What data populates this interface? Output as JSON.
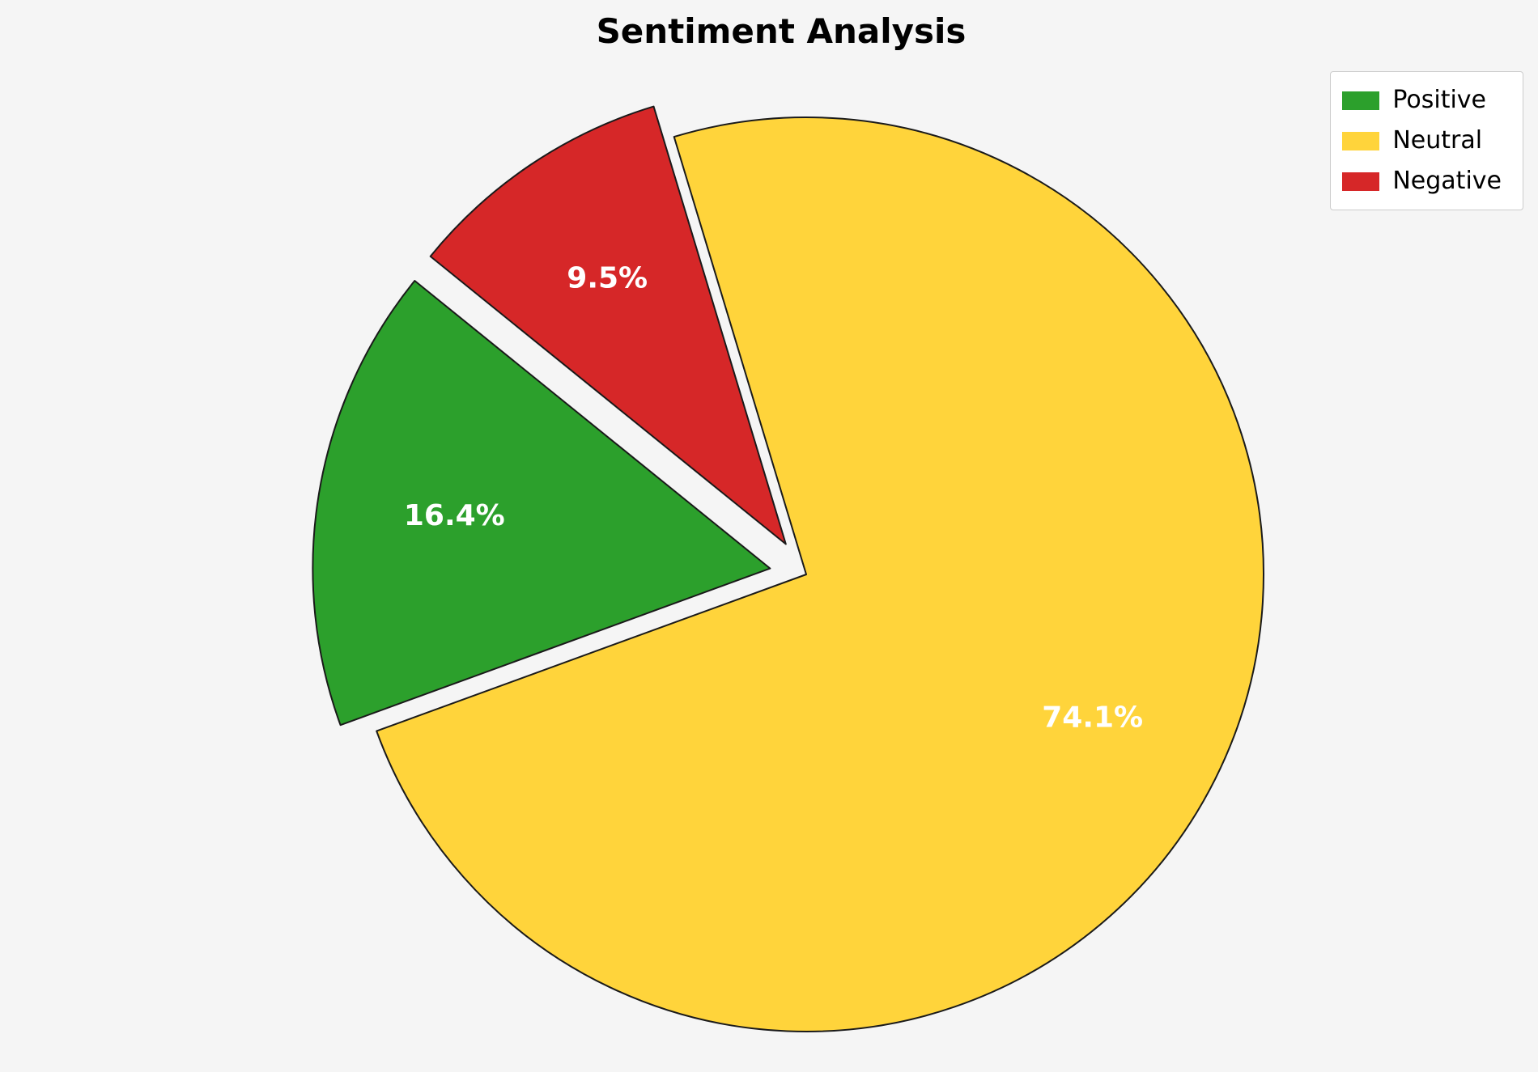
{
  "page": {
    "background": "#f5f5f5"
  },
  "chart_data": {
    "type": "pie",
    "title": "Sentiment Analysis",
    "labels": [
      "Positive",
      "Neutral",
      "Negative"
    ],
    "values": [
      16.4,
      74.1,
      9.5
    ],
    "pct_labels": [
      "16.4%",
      "74.1%",
      "9.5%"
    ],
    "colors": [
      "#2ca02c",
      "#ffd43b",
      "#d62728"
    ],
    "edge_color": "#1a1a1a",
    "pct_label_color": "#ffffff",
    "explode": [
      0.08,
      0,
      0.08
    ],
    "start_angle": 141,
    "direction": "counterclockwise",
    "pct_distance": 0.7,
    "legend": {
      "position": "upper right",
      "entries": [
        "Positive",
        "Neutral",
        "Negative"
      ]
    }
  }
}
